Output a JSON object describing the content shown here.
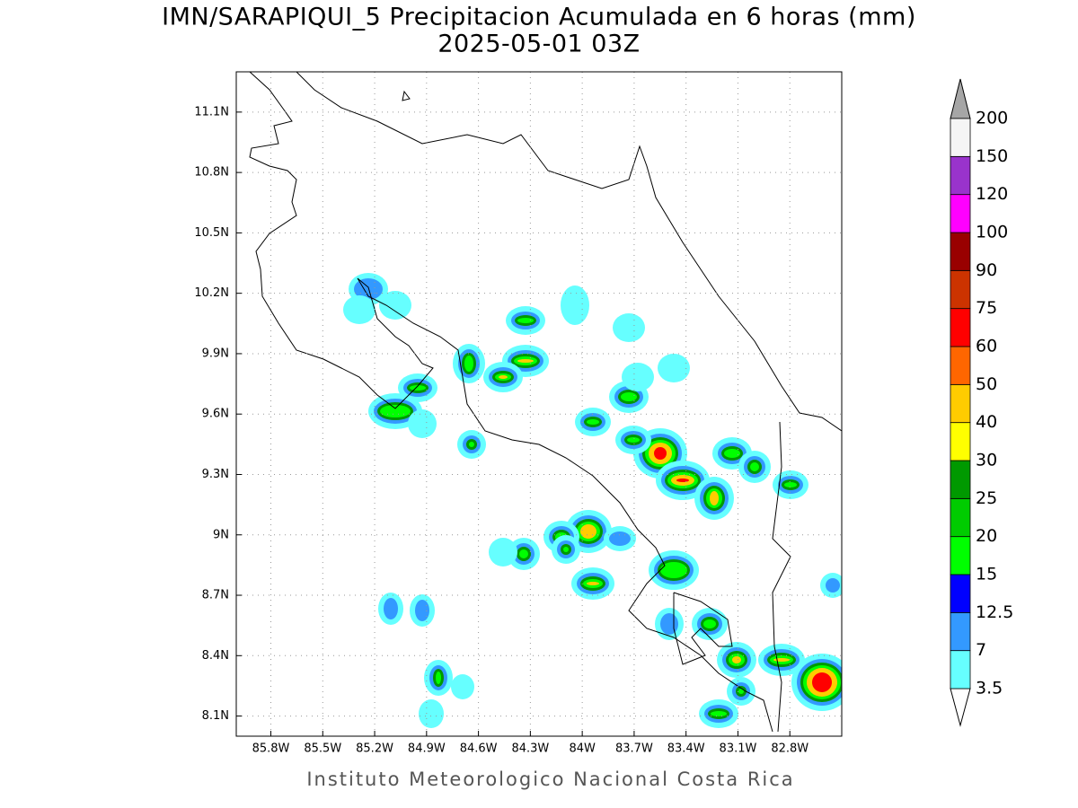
{
  "title": "IMN/SARAPIQUI_5 Precipitacion Acumulada en 6 horas (mm)",
  "subtitle": "2025-05-01 03Z",
  "map": {
    "lonlim": [
      -86.0,
      -82.5
    ],
    "latlim": [
      8.0,
      11.3
    ],
    "xticks": [
      {
        "value": -85.8,
        "label": "85.8W"
      },
      {
        "value": -85.5,
        "label": "85.5W"
      },
      {
        "value": -85.2,
        "label": "85.2W"
      },
      {
        "value": -84.9,
        "label": "84.9W"
      },
      {
        "value": -84.6,
        "label": "84.6W"
      },
      {
        "value": -84.3,
        "label": "84.3W"
      },
      {
        "value": -84.0,
        "label": "84W"
      },
      {
        "value": -83.7,
        "label": "83.7W"
      },
      {
        "value": -83.4,
        "label": "83.4W"
      },
      {
        "value": -83.1,
        "label": "83.1W"
      },
      {
        "value": -82.8,
        "label": "82.8W"
      }
    ],
    "yticks": [
      {
        "value": 8.1,
        "label": "8.1N"
      },
      {
        "value": 8.4,
        "label": "8.4N"
      },
      {
        "value": 8.7,
        "label": "8.7N"
      },
      {
        "value": 9.0,
        "label": "9N"
      },
      {
        "value": 9.3,
        "label": "9.3N"
      },
      {
        "value": 9.6,
        "label": "9.6N"
      },
      {
        "value": 9.9,
        "label": "9.9N"
      },
      {
        "value": 10.2,
        "label": "10.2N"
      },
      {
        "value": 10.5,
        "label": "10.5N"
      },
      {
        "value": 10.8,
        "label": "10.8N"
      },
      {
        "value": 11.1,
        "label": "11.1N"
      }
    ],
    "grid": true
  },
  "colorbar": {
    "levels": [
      3.5,
      7,
      12.5,
      15,
      20,
      25,
      30,
      40,
      50,
      60,
      75,
      90,
      100,
      120,
      150,
      200
    ],
    "colors": [
      "#66ffff",
      "#3399ff",
      "#0000ff",
      "#00ff00",
      "#00cc00",
      "#009900",
      "#ffff00",
      "#ffcc00",
      "#ff6600",
      "#ff0000",
      "#cc3300",
      "#990000",
      "#ff00ff",
      "#9933cc",
      "#f5f5f5"
    ],
    "over_color": "#a6a6a6",
    "under_color": "#ffffff"
  },
  "footer": "Instituto Meteorologico Nacional Costa Rica"
}
